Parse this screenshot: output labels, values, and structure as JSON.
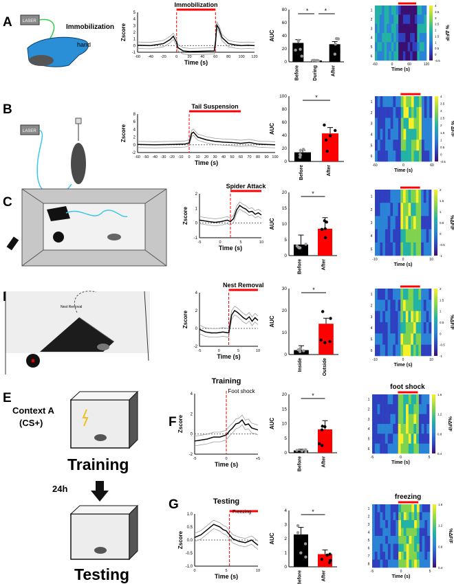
{
  "panel_letters": [
    "A",
    "B",
    "C",
    "D",
    "E",
    "F",
    "G"
  ],
  "schematics": {
    "a": {
      "laser": "LASER",
      "title": "Immobilization",
      "hand": "hand"
    },
    "b": {
      "laser": "LASER",
      "title": "Tail Suspension"
    },
    "d": {
      "nest": "Nest Removal"
    },
    "e": {
      "context": "Context A",
      "cs": "(CS+)",
      "training": "Training",
      "interval": "24h",
      "testing": "Testing"
    }
  },
  "colorbar_labels": [
    "% ΔF/F",
    "% ΔF/F",
    "%ΔF/F",
    "%ΔF/F",
    "%ΔF/F",
    "%ΔF/F"
  ],
  "colors": {
    "red": "#ff0000",
    "black": "#000000",
    "gray": "#9a9a9a"
  },
  "chart_data": [
    {
      "id": "a_trace",
      "type": "line",
      "title": "Immobilization",
      "xlabel": "Time (s)",
      "ylabel": "Zscore",
      "xlim": [
        -60,
        120
      ],
      "ylim": [
        -1,
        5
      ],
      "xticks": [
        "-60",
        "-40",
        "-20",
        "0",
        "20",
        "40",
        "60",
        "80",
        "100",
        "120"
      ],
      "yticks": [
        "-1",
        "0",
        "1",
        "2",
        "3",
        "4",
        "5"
      ],
      "event": [
        0,
        60
      ],
      "x": [
        -60,
        -40,
        -20,
        -10,
        -5,
        0,
        2,
        10,
        20,
        40,
        58,
        60,
        62,
        65,
        70,
        80,
        90,
        100,
        110,
        120
      ],
      "y": [
        0.05,
        0.0,
        0.3,
        0.9,
        1.4,
        0.5,
        -0.3,
        -0.8,
        -0.9,
        -0.85,
        -0.8,
        0.5,
        3.1,
        2.6,
        1.2,
        0.3,
        0.1,
        0.0,
        0.05,
        0.0
      ]
    },
    {
      "id": "a_auc",
      "type": "bar",
      "ylabel": "AUC",
      "ylim": [
        0,
        80
      ],
      "yticks": [
        "0",
        "20",
        "40",
        "60",
        "80"
      ],
      "categories": [
        "Before",
        "During",
        "After"
      ],
      "values": [
        29,
        2,
        27
      ],
      "errors": [
        5,
        1,
        4
      ],
      "colors": [
        "#000000",
        "#000000",
        "#000000"
      ],
      "sig": "*"
    },
    {
      "id": "b_trace",
      "type": "line",
      "title": "Tail Suspension",
      "xlabel": "Time (s)",
      "ylabel": "Zscore",
      "xlim": [
        -60,
        100
      ],
      "ylim": [
        -2,
        8
      ],
      "xticks": [
        "-60",
        "-50",
        "-40",
        "-30",
        "-20",
        "-10",
        "0",
        "10",
        "20",
        "30",
        "40",
        "50",
        "60",
        "70",
        "80",
        "90",
        "100"
      ],
      "yticks": [
        "-2",
        "0",
        "2",
        "4",
        "6",
        "8"
      ],
      "event": [
        0,
        60
      ],
      "x": [
        -60,
        -40,
        -20,
        -5,
        0,
        3,
        5,
        10,
        20,
        30,
        40,
        50,
        60,
        70,
        80,
        90,
        100
      ],
      "y": [
        0.1,
        0.0,
        0.1,
        0.2,
        0.5,
        3.0,
        3.3,
        2.0,
        1.3,
        0.9,
        0.7,
        0.6,
        0.4,
        0.6,
        0.2,
        0.1,
        0.0
      ]
    },
    {
      "id": "b_auc",
      "type": "bar",
      "ylabel": "AUC",
      "ylim": [
        0,
        100
      ],
      "yticks": [
        "0",
        "20",
        "40",
        "60",
        "80",
        "100"
      ],
      "categories": [
        "Before",
        "After"
      ],
      "values": [
        14,
        43
      ],
      "errors": [
        3,
        9
      ],
      "colors": [
        "#000000",
        "#ff0000"
      ],
      "sig": "*"
    },
    {
      "id": "c_trace",
      "type": "line",
      "title": "Spider Attack",
      "xlabel": "Time (s)",
      "ylabel": "Zscore",
      "xlim": [
        -10,
        10
      ],
      "ylim": [
        -1,
        2
      ],
      "xticks": [
        "-5",
        "0",
        "5",
        "10"
      ],
      "yticks": [
        "-1",
        "0",
        "1",
        "2"
      ],
      "event": [
        0,
        10
      ],
      "x": [
        -10,
        -7,
        -5,
        -3,
        -1,
        0,
        1,
        2,
        3,
        4,
        5,
        6,
        7,
        8,
        9,
        10
      ],
      "y": [
        0.2,
        0.1,
        0.05,
        0.1,
        0.2,
        0.1,
        0.3,
        0.9,
        1.2,
        1.05,
        0.95,
        0.75,
        0.8,
        0.6,
        0.7,
        0.55
      ]
    },
    {
      "id": "c_auc",
      "type": "bar",
      "ylabel": "AUC",
      "ylim": [
        0,
        20
      ],
      "yticks": [
        "0",
        "5",
        "10",
        "15",
        "20"
      ],
      "categories": [
        "Before",
        "After"
      ],
      "values": [
        3.5,
        8.5
      ],
      "errors": [
        3,
        3.5
      ],
      "colors": [
        "#000000",
        "#ff0000"
      ],
      "sig": "*"
    },
    {
      "id": "d_trace",
      "type": "line",
      "title": "Nest Removal",
      "xlabel": "Time (s)",
      "ylabel": "Zscore",
      "xlim": [
        -10,
        10
      ],
      "ylim": [
        -2,
        4
      ],
      "xticks": [
        "-5",
        "0",
        "5",
        "10"
      ],
      "yticks": [
        "-2",
        "0",
        "2",
        "4"
      ],
      "event": [
        0,
        10
      ],
      "x": [
        -10,
        -8,
        -6,
        -4,
        -2,
        0,
        0.5,
        1,
        2,
        3,
        4,
        5,
        6,
        7,
        8,
        9,
        10
      ],
      "y": [
        -0.1,
        -0.4,
        -0.5,
        -0.5,
        -0.4,
        -0.5,
        0.5,
        1.5,
        2.0,
        1.8,
        1.5,
        1.2,
        1.0,
        1.3,
        0.8,
        1.2,
        0.9
      ]
    },
    {
      "id": "d_auc",
      "type": "bar",
      "ylabel": "AUC",
      "ylim": [
        0,
        30
      ],
      "yticks": [
        "0",
        "10",
        "20",
        "30"
      ],
      "categories": [
        "Inside",
        "Outside"
      ],
      "values": [
        2,
        14
      ],
      "errors": [
        2,
        2.5
      ],
      "colors": [
        "#000000",
        "#ff0000"
      ],
      "sig": "*"
    },
    {
      "id": "f_trace",
      "type": "line",
      "title": "Training",
      "event_label": "Foot shock",
      "xlabel": "Time (s)",
      "ylabel": "Zscore",
      "xlim": [
        -5,
        5
      ],
      "ylim": [
        -2,
        4
      ],
      "xticks": [
        "-5",
        "0",
        "+5"
      ],
      "yticks": [
        "-2",
        "0",
        "2",
        "4"
      ],
      "event": [
        0,
        0
      ],
      "x": [
        -5,
        -4,
        -3,
        -2,
        -1,
        0,
        0.5,
        1,
        1.5,
        2,
        2.5,
        3,
        3.5,
        4,
        4.5,
        5
      ],
      "y": [
        -0.7,
        -0.6,
        -0.5,
        -0.3,
        -0.3,
        -0.1,
        0.3,
        0.6,
        1.0,
        1.1,
        1.4,
        0.9,
        1.0,
        0.6,
        0.5,
        0.4
      ]
    },
    {
      "id": "f_auc",
      "type": "bar",
      "ylabel": "AUC",
      "ylim": [
        0,
        20
      ],
      "yticks": [
        "0",
        "5",
        "10",
        "15",
        "20"
      ],
      "categories": [
        "Before",
        "After"
      ],
      "values": [
        0.8,
        8
      ],
      "errors": [
        0.4,
        3
      ],
      "colors": [
        "#000000",
        "#ff0000"
      ],
      "sig": "*"
    },
    {
      "id": "g_trace",
      "type": "line",
      "title": "Testing",
      "event_label": "Freezing",
      "xlabel": "Time (s)",
      "ylabel": "Zscore",
      "xlim": [
        0,
        10
      ],
      "ylim": [
        -1,
        1
      ],
      "xticks": [
        "0",
        "5",
        "10"
      ],
      "yticks": [
        "-1.0",
        "-0.5",
        "0.0",
        "0.5",
        "1.0"
      ],
      "event": [
        5.5,
        10
      ],
      "x": [
        0,
        1,
        2,
        3,
        3.5,
        4,
        4.5,
        5,
        5.5,
        6,
        7,
        8,
        9,
        9.5,
        10
      ],
      "y": [
        0.1,
        0.2,
        0.4,
        0.6,
        0.55,
        0.5,
        0.4,
        0.35,
        0.2,
        0.05,
        -0.05,
        -0.1,
        0.0,
        -0.1,
        -0.2
      ]
    },
    {
      "id": "g_auc",
      "type": "bar",
      "ylabel": "AUC",
      "ylim": [
        0,
        4
      ],
      "yticks": [
        "0",
        "1",
        "2",
        "3",
        "4"
      ],
      "categories": [
        "Before",
        "After"
      ],
      "values": [
        2.3,
        0.9
      ],
      "errors": [
        0.5,
        0.3
      ],
      "colors": [
        "#000000",
        "#ff0000"
      ],
      "sig": "*"
    },
    {
      "id": "a_heat",
      "type": "heatmap",
      "title": "",
      "xlabel": "Time (s)",
      "xticks": [
        "-60",
        "0",
        "60",
        "120"
      ],
      "rows": [
        "1",
        "2",
        "3",
        "4",
        "5",
        "6"
      ],
      "cbar": [
        "4",
        "3.5",
        "3",
        "2.5",
        "2",
        "1.5",
        "1",
        "0.5",
        "0",
        "-0.5"
      ],
      "colorbar_label": "% ΔF/F"
    },
    {
      "id": "b_heat",
      "type": "heatmap",
      "title": "",
      "xlabel": "Time (s)",
      "xticks": [
        "-60",
        "0",
        "60"
      ],
      "rows": [
        "1",
        "2",
        "3",
        "4",
        "5",
        "6"
      ],
      "cbar": [
        "4",
        "3.5",
        "3",
        "2.5",
        "2",
        "1.5",
        "1",
        "0.5",
        "0",
        "-0.5"
      ],
      "colorbar_label": "% ΔF/F"
    },
    {
      "id": "c_heat",
      "type": "heatmap",
      "title": "",
      "xlabel": "Time (s)",
      "xticks": [
        "-10",
        "0",
        "10"
      ],
      "rows": [
        "1",
        "2",
        "3",
        "4",
        "5"
      ],
      "cbar": [
        "2",
        "1.5",
        "1",
        "0.5",
        "0",
        "-0.5",
        "-1"
      ],
      "colorbar_label": "%ΔF/F"
    },
    {
      "id": "d_heat",
      "type": "heatmap",
      "title": "",
      "xlabel": "Time (s)",
      "xticks": [
        "-10",
        "0",
        "10"
      ],
      "rows": [
        "1",
        "2",
        "3",
        "4",
        "5",
        "6"
      ],
      "cbar": [
        "2",
        "1.5",
        "1",
        "0.5",
        "0",
        "-0.5",
        "-1"
      ],
      "colorbar_label": "%ΔF/F"
    },
    {
      "id": "f_heat",
      "type": "heatmap",
      "title": "foot shock",
      "xlabel": "Time (s)",
      "xticks": [
        "-5",
        "0",
        "5"
      ],
      "rows": [
        "1",
        "2",
        "3",
        "4",
        "5",
        "6"
      ],
      "cbar": [
        "1.6",
        "1.2",
        "0.8",
        "0.4"
      ],
      "colorbar_label": "%ΔF/F"
    },
    {
      "id": "g_heat",
      "type": "heatmap",
      "title": "freezing",
      "xlabel": "Time (s)",
      "xticks": [
        "-5",
        "0",
        "5"
      ],
      "rows": [
        "1",
        "2",
        "3",
        "4",
        "5",
        "6",
        "7",
        "8"
      ],
      "cbar": [
        "1.6",
        "1.2",
        "0.8",
        "0.4"
      ],
      "colorbar_label": "%ΔF/F"
    }
  ]
}
